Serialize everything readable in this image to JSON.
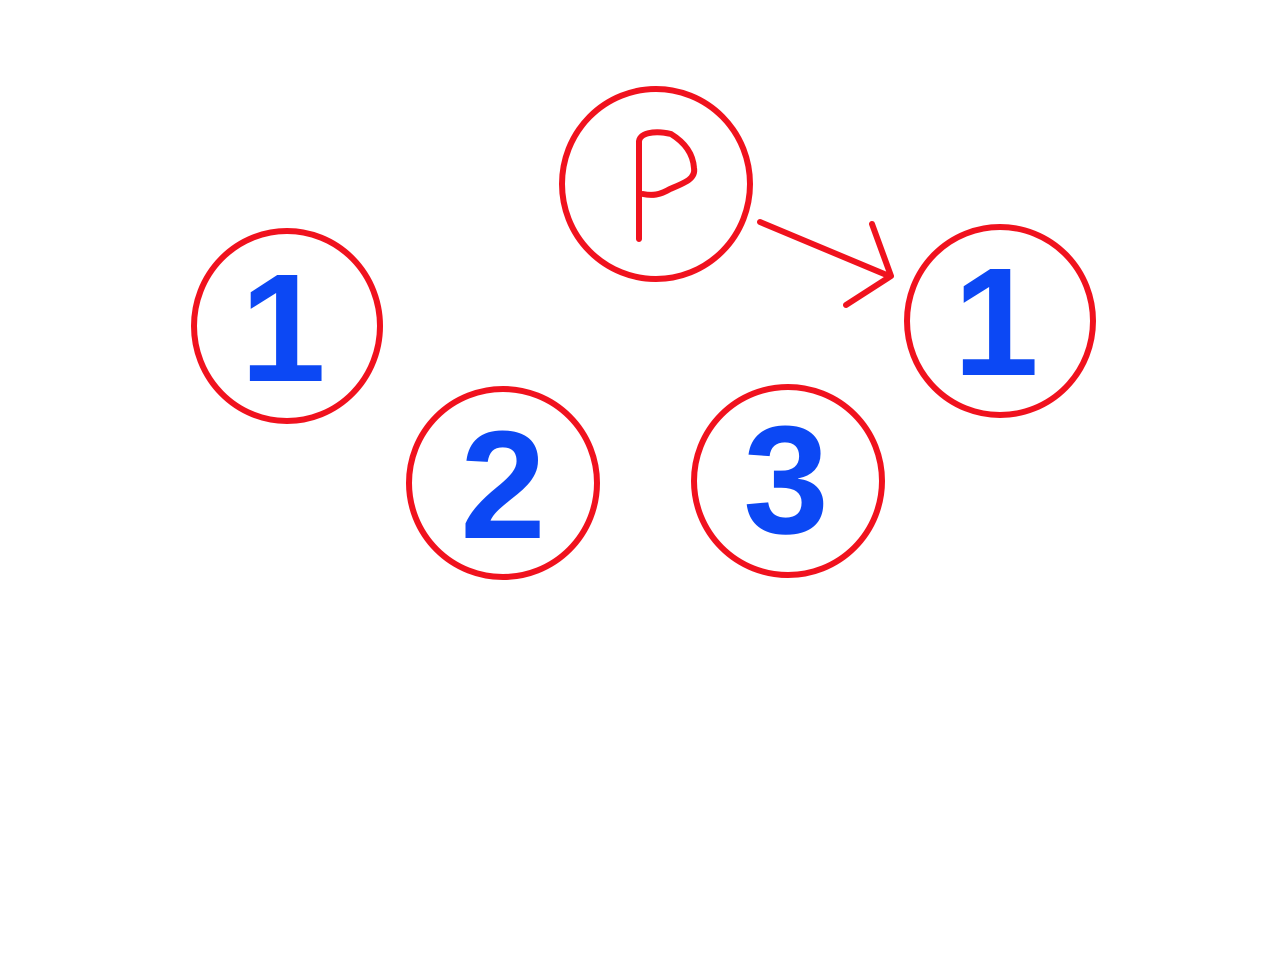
{
  "colors": {
    "ring": "#f0121e",
    "number": "#0c48f4",
    "pointer": "#f0121e"
  },
  "pointer": {
    "label": "P",
    "icon": "arrow-right-icon"
  },
  "nodes": [
    {
      "label": "1"
    },
    {
      "label": "2"
    },
    {
      "label": "3"
    },
    {
      "label": "1"
    }
  ]
}
